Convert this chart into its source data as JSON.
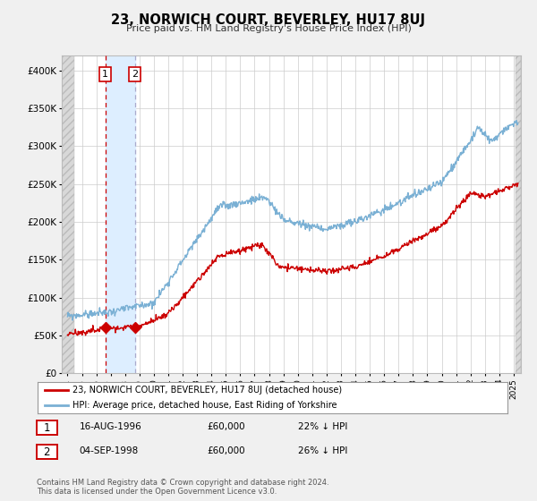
{
  "title": "23, NORWICH COURT, BEVERLEY, HU17 8UJ",
  "subtitle": "Price paid vs. HM Land Registry's House Price Index (HPI)",
  "xlim": [
    1993.6,
    2025.5
  ],
  "ylim": [
    0,
    420000
  ],
  "yticks": [
    0,
    50000,
    100000,
    150000,
    200000,
    250000,
    300000,
    350000,
    400000
  ],
  "ytick_labels": [
    "£0",
    "£50K",
    "£100K",
    "£150K",
    "£200K",
    "£250K",
    "£300K",
    "£350K",
    "£400K"
  ],
  "sale1_date": 1996.622,
  "sale2_date": 1998.672,
  "sale1_price": 60000,
  "sale2_price": 60000,
  "red_line_color": "#cc0000",
  "blue_line_color": "#7ab0d4",
  "marker_color": "#cc0000",
  "shaded_region_color": "#ddeeff",
  "hatch_color": "#d8d8d8",
  "legend_label_red": "23, NORWICH COURT, BEVERLEY, HU17 8UJ (detached house)",
  "legend_label_blue": "HPI: Average price, detached house, East Riding of Yorkshire",
  "table_row1": [
    "1",
    "16-AUG-1996",
    "£60,000",
    "22% ↓ HPI"
  ],
  "table_row2": [
    "2",
    "04-SEP-1998",
    "£60,000",
    "26% ↓ HPI"
  ],
  "footnote1": "Contains HM Land Registry data © Crown copyright and database right 2024.",
  "footnote2": "This data is licensed under the Open Government Licence v3.0.",
  "background_color": "#f0f0f0",
  "plot_bg_color": "#ffffff",
  "grid_color": "#cccccc",
  "hpi_seed": 42,
  "red_seed": 99
}
